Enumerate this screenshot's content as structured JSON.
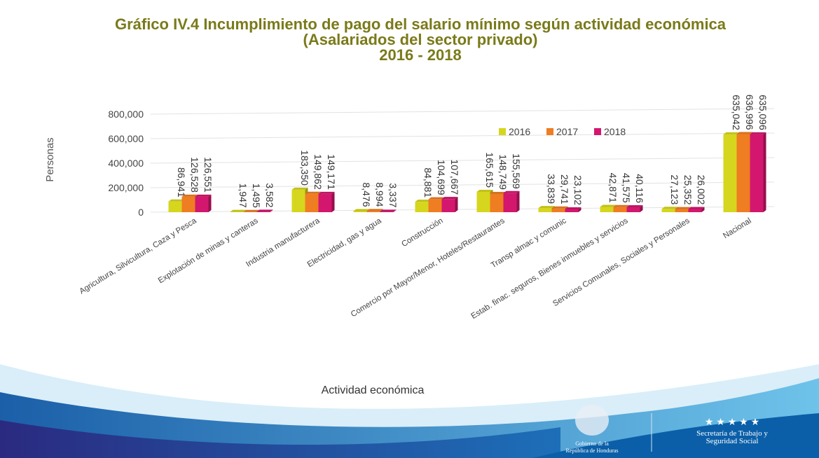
{
  "chart_data": {
    "type": "bar",
    "title": "Gráfico IV.4 Incumplimiento  de pago del salario mínimo según actividad económica",
    "subtitle": "(Asalariados del sector privado)",
    "period": "2016 - 2018",
    "ylabel": "Personas",
    "xlabel": "Actividad económica",
    "categories": [
      "Agricultura, Silvicultura, Caza y Pesca",
      "Explotación de minas y canteras",
      "Industria manufacturera",
      "Electricidad, gas y agua",
      "Construcción",
      "Comercio por Mayor/Menor, Hoteles/Restaurantes",
      "Transp almac y comunic",
      "Estab. finac. seguros, Bienes inmuebles y servicios",
      "Servicios Comunales, Sociales y Personales",
      "Nacional"
    ],
    "series": [
      {
        "name": "2016",
        "color": "#d6d61e",
        "values": [
          86941,
          1947,
          183350,
          8476,
          84881,
          165615,
          33839,
          42871,
          27123,
          635042
        ],
        "value_labels": [
          "86,941",
          "1,947",
          "183,350",
          "8,476",
          "84,881",
          "165,615",
          "33,839",
          "42,871",
          "27,123",
          "635,042"
        ]
      },
      {
        "name": "2017",
        "color": "#ef7d22",
        "values": [
          126528,
          1495,
          149862,
          8994,
          104699,
          148749,
          29741,
          41575,
          25352,
          636996
        ],
        "value_labels": [
          "126,528",
          "1,495",
          "149,862",
          "8,994",
          "104,699",
          "148,749",
          "29,741",
          "41,575",
          "25,352",
          "636,996"
        ]
      },
      {
        "name": "2018",
        "color": "#d3176f",
        "values": [
          126551,
          3582,
          149171,
          3337,
          107667,
          155569,
          23102,
          40116,
          26002,
          635096
        ],
        "value_labels": [
          "126,551",
          "3,582",
          "149,171",
          "3,337",
          "107,667",
          "155,569",
          "23,102",
          "40,116",
          "26,002",
          "635,096"
        ]
      }
    ],
    "ylim": [
      0,
      800000
    ],
    "yticks": [
      0,
      {
        "value": 200000,
        "label": "200,000"
      },
      {
        "value": 400000,
        "label": "400,000"
      },
      {
        "value": 600000,
        "label": "600,000"
      },
      {
        "value": 800000,
        "label": "800,000"
      }
    ],
    "grid": true
  },
  "footer": {
    "government": [
      "Gobierno de la",
      "República de Honduras"
    ],
    "ministry": [
      "Secretaría de Trabajo y",
      "Seguridad Social"
    ],
    "stars": "★ ★ ★ ★ ★"
  }
}
